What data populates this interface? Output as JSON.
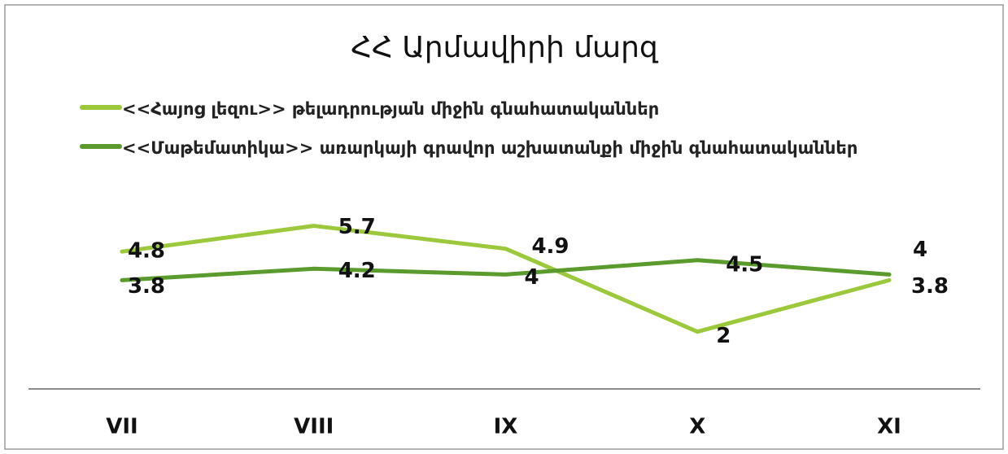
{
  "chart_data": {
    "type": "line",
    "title": "ՀՀ Արմավիրի մարզ",
    "categories": [
      "VII",
      "VIII",
      "IX",
      "X",
      "XI"
    ],
    "series": [
      {
        "name": "<<Հայոց լեզու>> թելադրության միջին գնահատականներ",
        "color": "#9cc93b",
        "values": [
          4.8,
          5.7,
          4.9,
          2,
          3.8
        ]
      },
      {
        "name": "<<Մաթեմատիկա>> առարկայի գրավոր աշխատանքի միջին գնահատականներ",
        "color": "#5b9b2e",
        "values": [
          3.8,
          4.2,
          4,
          4.5,
          4
        ]
      }
    ],
    "ylim": [
      0,
      6
    ]
  }
}
